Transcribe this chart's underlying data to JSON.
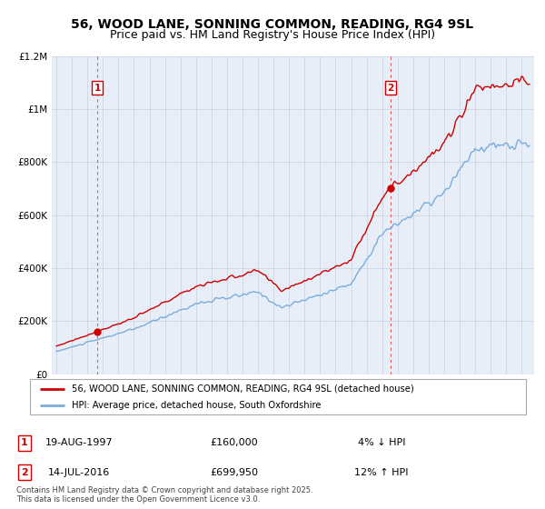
{
  "title": "56, WOOD LANE, SONNING COMMON, READING, RG4 9SL",
  "subtitle": "Price paid vs. HM Land Registry's House Price Index (HPI)",
  "legend_line1": "56, WOOD LANE, SONNING COMMON, READING, RG4 9SL (detached house)",
  "legend_line2": "HPI: Average price, detached house, South Oxfordshire",
  "annotation1_date": "19-AUG-1997",
  "annotation1_price": "£160,000",
  "annotation1_hpi": "4% ↓ HPI",
  "annotation2_date": "14-JUL-2016",
  "annotation2_price": "£699,950",
  "annotation2_hpi": "12% ↑ HPI",
  "copyright": "Contains HM Land Registry data © Crown copyright and database right 2025.\nThis data is licensed under the Open Government Licence v3.0.",
  "sale1_year": 1997.63,
  "sale1_price": 160000,
  "sale2_year": 2016.54,
  "sale2_price": 699950,
  "line_color": "#cc0000",
  "hpi_color": "#7aaddb",
  "background_color": "#e8eef8",
  "plot_bg": "#ffffff",
  "grid_color": "#c8d0e0",
  "dashed_line_color": "#e06060",
  "title_fontsize": 10,
  "subtitle_fontsize": 9
}
